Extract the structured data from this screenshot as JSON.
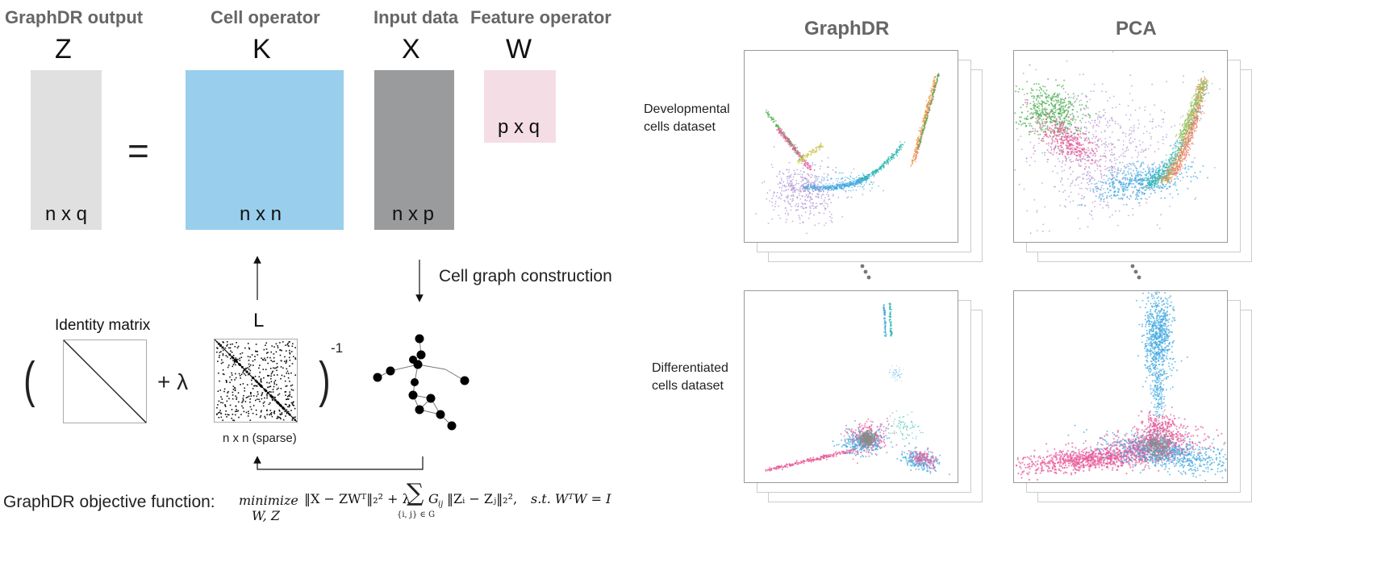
{
  "matrix_equation": {
    "output": {
      "header": "GraphDR output",
      "symbol": "Z",
      "dims": "n x q"
    },
    "equals": "=",
    "cell_operator": {
      "header": "Cell operator",
      "symbol": "K",
      "dims": "n x n"
    },
    "input_data": {
      "header": "Input data",
      "symbol": "X",
      "dims": "n x p"
    },
    "feature_operator": {
      "header": "Feature operator",
      "symbol": "W",
      "dims": "p x q"
    },
    "colors": {
      "output": "#e0e0e0",
      "cell_operator": "#99ceec",
      "input_data": "#9a9b9c",
      "feature_operator": "#f5dde6"
    }
  },
  "construction": {
    "graph_label": "Cell graph construction",
    "identity_label": "Identity matrix",
    "laplacian_symbol": "L",
    "laplacian_dims": "n x n (sparse)",
    "open_paren": "(",
    "plus_lambda": "+ λ",
    "close_paren": ")",
    "exponent": "-1"
  },
  "objective": {
    "label": "GraphDR objective function:",
    "minimize": "minimize",
    "variables": "W, Z",
    "main_term": "‖X − ZWᵀ‖₂² + λ",
    "sum_symbol": "∑",
    "sum_index": "{i, j} ∈ G",
    "graph_term": "G",
    "graph_sub": "ij",
    "norm_term": "‖Zᵢ − Zⱼ‖₂²,",
    "constraint": "s.t.  WᵀW = I"
  },
  "comparison": {
    "columns": [
      "GraphDR",
      "PCA"
    ],
    "rows": [
      {
        "label_line1": "Developmental",
        "label_line2": "cells dataset"
      },
      {
        "label_line1": "Differentiated",
        "label_line2": "cells dataset"
      }
    ],
    "dots": "⋮",
    "colors": {
      "green": "#4caf50",
      "pink": "#e85a9a",
      "purple": "#a98fd0",
      "blue": "#3da8e0",
      "teal": "#2ab7b0",
      "orange": "#e8963c",
      "salmon": "#f07a6a",
      "gray": "#8a8a8a"
    }
  }
}
